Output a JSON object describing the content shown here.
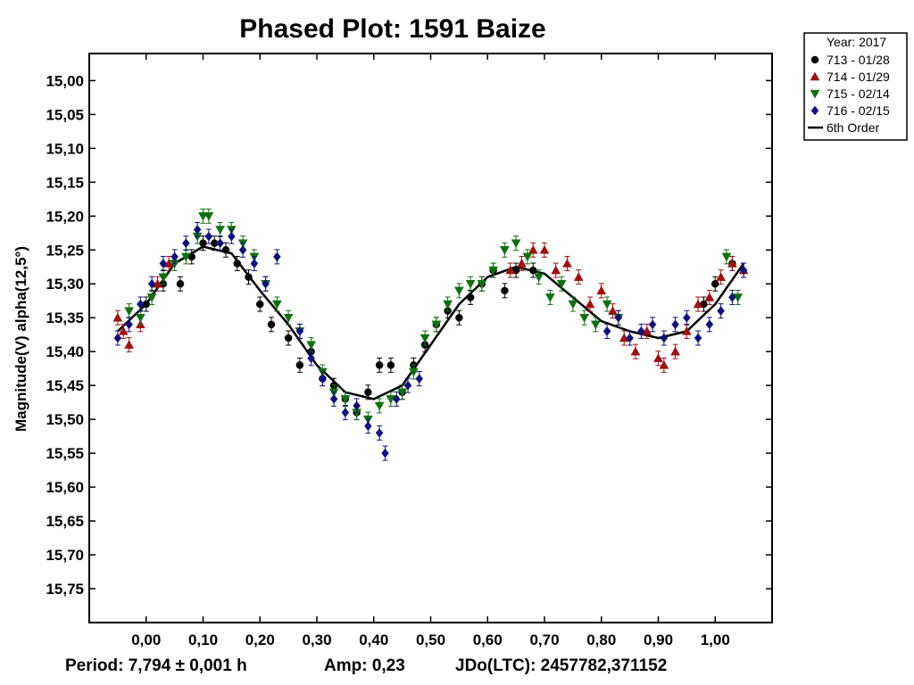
{
  "chart_data": {
    "type": "scatter",
    "title": "Phased Plot: 1591 Baize",
    "xlabel": "",
    "ylabel": "Magnitude(V) alpha(12,5°)",
    "xlim": [
      -0.1,
      1.1
    ],
    "ylim": [
      15.8,
      14.96
    ],
    "y_inverted": true,
    "x_ticks": [
      0.0,
      0.1,
      0.2,
      0.3,
      0.4,
      0.5,
      0.6,
      0.7,
      0.8,
      0.9,
      1.0
    ],
    "x_tick_labels": [
      "0,00",
      "0,10",
      "0,20",
      "0,30",
      "0,40",
      "0,50",
      "0,60",
      "0,70",
      "0,80",
      "0,90",
      "1,00"
    ],
    "y_ticks": [
      15.0,
      15.05,
      15.1,
      15.15,
      15.2,
      15.25,
      15.3,
      15.35,
      15.4,
      15.45,
      15.5,
      15.55,
      15.6,
      15.65,
      15.7,
      15.75
    ],
    "y_tick_labels": [
      "15,00",
      "15,05",
      "15,10",
      "15,15",
      "15,20",
      "15,25",
      "15,30",
      "15,35",
      "15,40",
      "15,45",
      "15,50",
      "15,55",
      "15,60",
      "15,65",
      "15,70",
      "15,75"
    ],
    "legend": {
      "placement": "outside-top-right",
      "header": "Year: 2017",
      "entries": [
        {
          "label": "713 - 01/28",
          "marker": "circle",
          "color": "#000000"
        },
        {
          "label": "714 - 01/29",
          "marker": "triangle-up",
          "color": "#a01010"
        },
        {
          "label": "715 - 02/14",
          "marker": "triangle-down",
          "color": "#107010"
        },
        {
          "label": "716 - 02/15",
          "marker": "diamond",
          "color": "#101080"
        },
        {
          "label": "6th Order",
          "marker": "line",
          "color": "#000000"
        }
      ]
    },
    "fit_curve": {
      "name": "6th Order",
      "points": [
        [
          -0.05,
          15.37
        ],
        [
          0.0,
          15.33
        ],
        [
          0.05,
          15.27
        ],
        [
          0.1,
          15.245
        ],
        [
          0.15,
          15.255
        ],
        [
          0.2,
          15.31
        ],
        [
          0.25,
          15.36
        ],
        [
          0.3,
          15.42
        ],
        [
          0.35,
          15.46
        ],
        [
          0.4,
          15.47
        ],
        [
          0.45,
          15.45
        ],
        [
          0.5,
          15.39
        ],
        [
          0.55,
          15.33
        ],
        [
          0.6,
          15.29
        ],
        [
          0.65,
          15.275
        ],
        [
          0.7,
          15.285
        ],
        [
          0.75,
          15.32
        ],
        [
          0.8,
          15.355
        ],
        [
          0.85,
          15.37
        ],
        [
          0.9,
          15.38
        ],
        [
          0.95,
          15.37
        ],
        [
          1.0,
          15.33
        ],
        [
          1.05,
          15.27
        ]
      ]
    },
    "series": [
      {
        "name": "713 - 01/28",
        "marker": "circle",
        "color": "#000000",
        "x": [
          0.0,
          0.03,
          0.06,
          0.08,
          0.1,
          0.12,
          0.14,
          0.16,
          0.18,
          0.2,
          0.22,
          0.25,
          0.27,
          0.29,
          0.31,
          0.33,
          0.35,
          0.37,
          0.39,
          0.41,
          0.43,
          0.45,
          0.47,
          0.49,
          0.51,
          0.53,
          0.55,
          0.57,
          0.59,
          0.61,
          0.63,
          0.65,
          0.68,
          0.98,
          1.0,
          1.03
        ],
        "y": [
          15.33,
          15.3,
          15.3,
          15.26,
          15.24,
          15.24,
          15.25,
          15.27,
          15.29,
          15.33,
          15.36,
          15.38,
          15.42,
          15.4,
          15.44,
          15.45,
          15.47,
          15.49,
          15.46,
          15.42,
          15.42,
          15.46,
          15.42,
          15.39,
          15.36,
          15.34,
          15.35,
          15.32,
          15.3,
          15.28,
          15.31,
          15.28,
          15.28,
          15.33,
          15.3,
          15.27
        ]
      },
      {
        "name": "714 - 01/29",
        "marker": "triangle-up",
        "color": "#a01010",
        "x": [
          -0.05,
          -0.04,
          -0.03,
          -0.01,
          0.02,
          0.04,
          0.64,
          0.66,
          0.68,
          0.7,
          0.72,
          0.74,
          0.76,
          0.78,
          0.8,
          0.82,
          0.84,
          0.86,
          0.88,
          0.9,
          0.91,
          0.93,
          0.95,
          0.97,
          0.99,
          1.01,
          1.03,
          1.05
        ],
        "y": [
          15.35,
          15.37,
          15.39,
          15.36,
          15.3,
          15.27,
          15.28,
          15.27,
          15.25,
          15.25,
          15.28,
          15.27,
          15.29,
          15.33,
          15.31,
          15.34,
          15.38,
          15.4,
          15.37,
          15.41,
          15.42,
          15.4,
          15.37,
          15.33,
          15.32,
          15.29,
          15.27,
          15.28
        ]
      },
      {
        "name": "715 - 02/14",
        "marker": "triangle-down",
        "color": "#107010",
        "x": [
          -0.03,
          -0.01,
          0.01,
          0.03,
          0.05,
          0.07,
          0.09,
          0.1,
          0.11,
          0.13,
          0.15,
          0.17,
          0.19,
          0.21,
          0.23,
          0.25,
          0.27,
          0.29,
          0.31,
          0.33,
          0.35,
          0.37,
          0.39,
          0.41,
          0.43,
          0.45,
          0.47,
          0.49,
          0.51,
          0.53,
          0.55,
          0.57,
          0.59,
          0.61,
          0.63,
          0.65,
          0.67,
          0.69,
          0.71,
          0.73,
          0.75,
          0.77,
          0.79,
          0.81,
          0.83,
          1.02,
          1.04
        ],
        "y": [
          15.34,
          15.35,
          15.32,
          15.29,
          15.27,
          15.26,
          15.23,
          15.2,
          15.2,
          15.22,
          15.22,
          15.24,
          15.26,
          15.3,
          15.33,
          15.35,
          15.37,
          15.39,
          15.43,
          15.46,
          15.47,
          15.49,
          15.5,
          15.48,
          15.47,
          15.46,
          15.43,
          15.38,
          15.36,
          15.33,
          15.31,
          15.3,
          15.3,
          15.28,
          15.25,
          15.24,
          15.26,
          15.29,
          15.32,
          15.3,
          15.33,
          15.35,
          15.36,
          15.33,
          15.35,
          15.26,
          15.32
        ]
      },
      {
        "name": "716 - 02/15",
        "marker": "diamond",
        "color": "#101080",
        "x": [
          -0.05,
          -0.03,
          -0.01,
          0.01,
          0.03,
          0.05,
          0.07,
          0.09,
          0.11,
          0.13,
          0.15,
          0.17,
          0.19,
          0.21,
          0.23,
          0.27,
          0.29,
          0.31,
          0.33,
          0.35,
          0.37,
          0.39,
          0.41,
          0.42,
          0.44,
          0.46,
          0.48,
          0.81,
          0.83,
          0.85,
          0.87,
          0.89,
          0.91,
          0.93,
          0.95,
          0.97,
          0.99,
          1.01,
          1.03,
          1.05
        ],
        "y": [
          15.38,
          15.36,
          15.33,
          15.3,
          15.27,
          15.26,
          15.24,
          15.22,
          15.23,
          15.24,
          15.23,
          15.25,
          15.27,
          15.3,
          15.26,
          15.37,
          15.41,
          15.44,
          15.47,
          15.49,
          15.48,
          15.51,
          15.52,
          15.55,
          15.47,
          15.45,
          15.44,
          15.37,
          15.35,
          15.38,
          15.37,
          15.36,
          15.38,
          15.36,
          15.35,
          15.38,
          15.36,
          15.34,
          15.32,
          15.28
        ]
      }
    ]
  },
  "footer": {
    "period": "Period: 7,794 ± 0,001 h",
    "amp": "Amp: 0,23",
    "jdo": "JDo(LTC): 2457782,371152"
  }
}
